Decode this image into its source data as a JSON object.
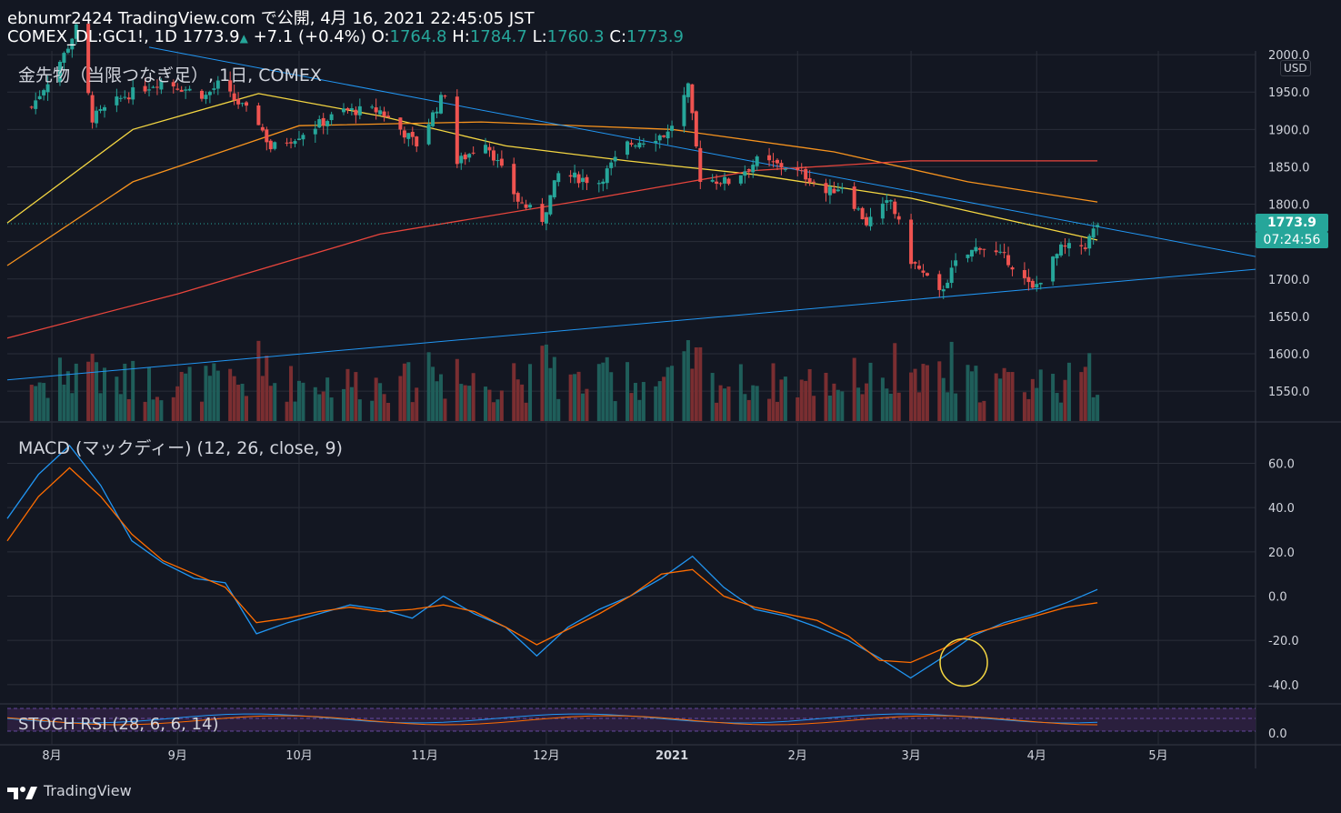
{
  "header": {
    "line1": "ebnumr2424 TradingView.com で公開, 4月 16, 2021 22:45:05 JST",
    "symbol": "COMEX_DL:GC1!, 1D",
    "last": "1773.9",
    "change_arrow": "▲",
    "change": "+7.1 (+0.4%)",
    "o_label": "O:",
    "o": "1764.8",
    "h_label": "H:",
    "h": "1784.7",
    "l_label": "L:",
    "l": "1760.3",
    "c_label": "C:",
    "c": "1773.9"
  },
  "main_legend": "金先物（当限つなぎ足）, 1日, COMEX",
  "macd_legend": "MACD (マックディー) (12, 26, close, 9)",
  "stoch_legend": "STOCH RSI (28, 6, 6, 14)",
  "currency": "USD",
  "price_label": "1773.9",
  "countdown": "07:24:56",
  "footer_brand": "TradingView",
  "colors": {
    "background": "#131722",
    "up": "#26a69a",
    "down": "#ef5350",
    "ma_yellow": "#f5d742",
    "ma_orange": "#f7931e",
    "ma_red": "#e8453c",
    "trendline": "#2196f3",
    "macd": "#2196f3",
    "signal": "#ff6d00"
  },
  "chart_data": [
    {
      "type": "candlestick",
      "title": "金先物（当限つなぎ足）, 1日, COMEX",
      "ylim": [
        1510,
        2005
      ],
      "y_ticks": [
        "2000.0",
        "1950.0",
        "1900.0",
        "1850.0",
        "1800.0",
        "1750.0",
        "1700.0",
        "1650.0",
        "1600.0",
        "1550.0"
      ],
      "x_ticks": [
        "8月",
        "9月",
        "10月",
        "11月",
        "12月",
        "2021",
        "2月",
        "3月",
        "4月",
        "5月"
      ],
      "close_path": [
        {
          "x": "2020-07-27",
          "close": 1930
        },
        {
          "x": "2020-08-04",
          "close": 2000
        },
        {
          "x": "2020-08-07",
          "close": 2035
        },
        {
          "x": "2020-08-11",
          "close": 1915
        },
        {
          "x": "2020-08-19",
          "close": 1945
        },
        {
          "x": "2020-08-28",
          "close": 1965
        },
        {
          "x": "2020-09-08",
          "close": 1945
        },
        {
          "x": "2020-09-11",
          "close": 1960
        },
        {
          "x": "2020-09-21",
          "close": 1910
        },
        {
          "x": "2020-09-24",
          "close": 1875
        },
        {
          "x": "2020-09-30",
          "close": 1890
        },
        {
          "x": "2020-10-12",
          "close": 1925
        },
        {
          "x": "2020-10-21",
          "close": 1925
        },
        {
          "x": "2020-10-30",
          "close": 1880
        },
        {
          "x": "2020-11-06",
          "close": 1950
        },
        {
          "x": "2020-11-09",
          "close": 1855
        },
        {
          "x": "2020-11-16",
          "close": 1885
        },
        {
          "x": "2020-11-24",
          "close": 1805
        },
        {
          "x": "2020-11-30",
          "close": 1780
        },
        {
          "x": "2020-12-04",
          "close": 1840
        },
        {
          "x": "2020-12-14",
          "close": 1830
        },
        {
          "x": "2020-12-21",
          "close": 1880
        },
        {
          "x": "2020-12-31",
          "close": 1895
        },
        {
          "x": "2021-01-05",
          "close": 1955
        },
        {
          "x": "2021-01-08",
          "close": 1835
        },
        {
          "x": "2021-01-15",
          "close": 1830
        },
        {
          "x": "2021-01-22",
          "close": 1858
        },
        {
          "x": "2021-01-29",
          "close": 1850
        },
        {
          "x": "2021-02-04",
          "close": 1835
        },
        {
          "x": "2021-02-08",
          "close": 1815
        },
        {
          "x": "2021-02-12",
          "close": 1825
        },
        {
          "x": "2021-02-18",
          "close": 1775
        },
        {
          "x": "2021-02-24",
          "close": 1805
        },
        {
          "x": "2021-03-01",
          "close": 1725
        },
        {
          "x": "2021-03-08",
          "close": 1680
        },
        {
          "x": "2021-03-12",
          "close": 1720
        },
        {
          "x": "2021-03-18",
          "close": 1745
        },
        {
          "x": "2021-03-25",
          "close": 1725
        },
        {
          "x": "2021-03-31",
          "close": 1685
        },
        {
          "x": "2021-04-07",
          "close": 1740
        },
        {
          "x": "2021-04-13",
          "close": 1745
        },
        {
          "x": "2021-04-16",
          "close": 1773.9
        }
      ],
      "moving_averages": [
        {
          "name": "MA (yellow)",
          "color": "#f5d742",
          "values": [
            1775,
            1900,
            1948,
            1918,
            1878,
            1858,
            1840,
            1808,
            1752
          ]
        },
        {
          "name": "MA (orange)",
          "color": "#f7931e",
          "values": [
            1718,
            1830,
            1905,
            1910,
            1900,
            1870,
            1830,
            1803
          ]
        },
        {
          "name": "MA (red)",
          "color": "#e8453c",
          "values": [
            1621,
            1680,
            1760,
            1805,
            1845,
            1858,
            1858
          ]
        }
      ]
    },
    {
      "type": "line",
      "title": "MACD (マックディー) (12, 26, close, 9)",
      "ylim": [
        -45,
        75
      ],
      "y_ticks": [
        "60.0",
        "40.0",
        "20.0",
        "0.0",
        "-20.0",
        "-40.0"
      ],
      "series": [
        {
          "color": "#2196f3",
          "values": [
            35,
            55,
            68,
            50,
            25,
            15,
            8,
            6,
            -17,
            -12,
            -8,
            -4,
            -6,
            -10,
            0,
            -8,
            -14,
            -27,
            -14,
            -6,
            0,
            8,
            18,
            4,
            -6,
            -9,
            -14,
            -20,
            -28,
            -37,
            -28,
            -18,
            -12,
            -8,
            -3,
            3
          ]
        },
        {
          "color": "#ff6d00",
          "values": [
            25,
            45,
            58,
            45,
            28,
            16,
            10,
            4,
            -12,
            -10,
            -7,
            -5,
            -7,
            -6,
            -4,
            -7,
            -14,
            -22,
            -15,
            -8,
            0,
            10,
            12,
            0,
            -5,
            -8,
            -11,
            -18,
            -29,
            -30,
            -24,
            -17,
            -13,
            -9,
            -5,
            -3
          ]
        }
      ]
    },
    {
      "type": "line",
      "title": "STOCH RSI (28, 6, 6, 14)",
      "y_ticks": [
        "0.0"
      ]
    }
  ]
}
